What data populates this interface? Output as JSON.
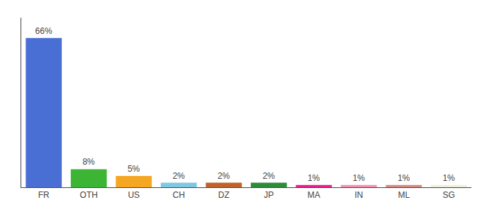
{
  "chart_data": {
    "type": "bar",
    "categories": [
      "FR",
      "OTH",
      "US",
      "CH",
      "DZ",
      "JP",
      "MA",
      "IN",
      "ML",
      "SG"
    ],
    "values": [
      66,
      8,
      5,
      2,
      2,
      2,
      1,
      1,
      1,
      1
    ],
    "value_labels": [
      "66%",
      "8%",
      "5%",
      "2%",
      "2%",
      "2%",
      "1%",
      "1%",
      "1%",
      "1%"
    ],
    "colors": [
      "#4a6fd4",
      "#3db534",
      "#f5a623",
      "#7ec8e3",
      "#c0622a",
      "#2e8b3a",
      "#e91e8c",
      "#f48fb1",
      "#d98880",
      "#f0eedc"
    ],
    "ylim": [
      0,
      75
    ],
    "grid": false,
    "data_labels": true,
    "tick_labels": "x"
  }
}
